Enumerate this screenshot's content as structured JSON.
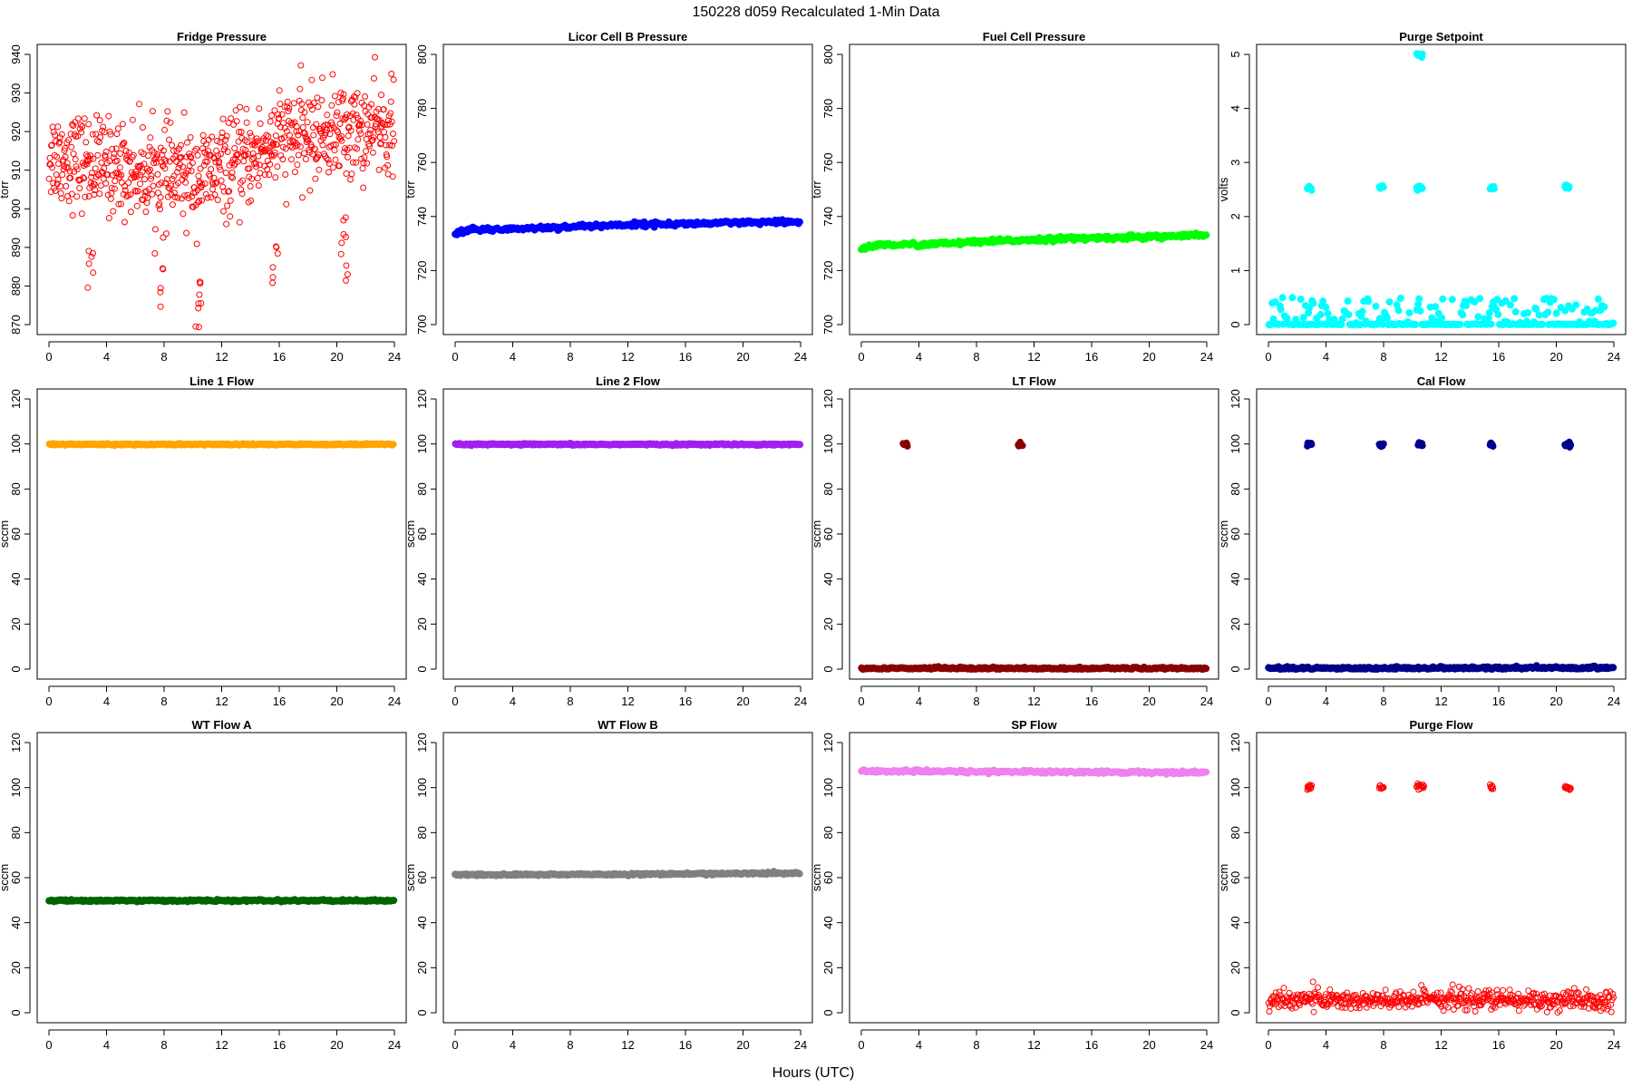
{
  "figure": {
    "title": "150228    d059    Recalculated 1-Min Data",
    "xlabel": "Hours (UTC)"
  },
  "chart_data": [
    {
      "type": "scatter",
      "title": "Fridge Pressure",
      "ylabel": "torr",
      "color": "#ff0000",
      "marker": "open-circle",
      "xlim": [
        0,
        24
      ],
      "ylim": [
        870,
        940
      ],
      "xticks": [
        0,
        4,
        8,
        12,
        16,
        20,
        24
      ],
      "yticks": [
        870,
        880,
        890,
        900,
        910,
        920,
        930,
        940
      ],
      "series": [
        {
          "name": "",
          "baseline": [
            [
              0,
              914
            ],
            [
              4,
              911
            ],
            [
              8,
              909
            ],
            [
              10,
              908
            ],
            [
              12,
              910
            ],
            [
              14,
              913
            ],
            [
              16,
              918
            ],
            [
              18,
              919
            ],
            [
              20,
              920
            ],
            [
              22,
              920
            ],
            [
              24,
              921
            ]
          ],
          "scatter": 6,
          "dips": [
            [
              2.8,
              884
            ],
            [
              3.0,
              888
            ],
            [
              7.7,
              876
            ],
            [
              7.9,
              887
            ],
            [
              10.3,
              871
            ],
            [
              10.5,
              875
            ],
            [
              10.6,
              880
            ],
            [
              15.6,
              881
            ],
            [
              15.8,
              889
            ],
            [
              20.4,
              891
            ],
            [
              20.7,
              883
            ],
            [
              20.5,
              895
            ]
          ]
        }
      ]
    },
    {
      "type": "scatter",
      "title": "Licor Cell B Pressure",
      "ylabel": "torr",
      "color": "#0000ff",
      "marker": "filled-dense",
      "xlim": [
        0,
        24
      ],
      "ylim": [
        700,
        800
      ],
      "xticks": [
        0,
        4,
        8,
        12,
        16,
        20,
        24
      ],
      "yticks": [
        700,
        720,
        740,
        760,
        780,
        800
      ],
      "series": [
        {
          "name": "",
          "baseline": [
            [
              0,
              734
            ],
            [
              1,
              735
            ],
            [
              6,
              735.8
            ],
            [
              12,
              737
            ],
            [
              16,
              737.3
            ],
            [
              24,
              738
            ]
          ],
          "scatter": 0.4
        }
      ]
    },
    {
      "type": "scatter",
      "title": "Fuel Cell Pressure",
      "ylabel": "torr",
      "color": "#00ff00",
      "marker": "filled-dense",
      "xlim": [
        0,
        24
      ],
      "ylim": [
        700,
        800
      ],
      "xticks": [
        0,
        4,
        8,
        12,
        16,
        20,
        24
      ],
      "yticks": [
        700,
        720,
        740,
        760,
        780,
        800
      ],
      "series": [
        {
          "name": "",
          "baseline": [
            [
              0,
              728
            ],
            [
              1,
              729.5
            ],
            [
              4,
              729.6
            ],
            [
              8,
              730.5
            ],
            [
              12,
              731.5
            ],
            [
              16,
              732
            ],
            [
              20,
              732.5
            ],
            [
              24,
              733
            ]
          ],
          "scatter": 0.4
        }
      ]
    },
    {
      "type": "scatter",
      "title": "Purge Setpoint",
      "ylabel": "volts",
      "color": "#00ffff",
      "marker": "filled-dense",
      "xlim": [
        0,
        24
      ],
      "ylim": [
        0,
        5
      ],
      "xticks": [
        0,
        4,
        8,
        12,
        16,
        20,
        24
      ],
      "yticks": [
        0,
        1,
        2,
        3,
        4,
        5
      ],
      "series": [
        {
          "name": "",
          "baseline": [
            [
              0,
              0
            ],
            [
              24,
              0
            ]
          ],
          "scatter": 0.005,
          "segments": [
            [
              2.7,
              3.0,
              2.52
            ],
            [
              7.7,
              8.0,
              2.55
            ],
            [
              10.3,
              10.7,
              2.53
            ],
            [
              15.4,
              15.7,
              2.52
            ],
            [
              20.6,
              20.9,
              2.55
            ],
            [
              10.3,
              10.7,
              5.0
            ]
          ]
        }
      ]
    },
    {
      "type": "scatter",
      "title": "Line 1 Flow",
      "ylabel": "sccm",
      "color": "#ffa500",
      "marker": "filled-dense",
      "xlim": [
        0,
        24
      ],
      "ylim": [
        0,
        120
      ],
      "xticks": [
        0,
        4,
        8,
        12,
        16,
        20,
        24
      ],
      "yticks": [
        0,
        20,
        40,
        60,
        80,
        100,
        120
      ],
      "series": [
        {
          "name": "",
          "baseline": [
            [
              0,
              99.8
            ],
            [
              24,
              99.8
            ]
          ],
          "scatter": 0.15
        }
      ]
    },
    {
      "type": "scatter",
      "title": "Line 2 Flow",
      "ylabel": "sccm",
      "color": "#a020f0",
      "marker": "filled-dense",
      "xlim": [
        0,
        24
      ],
      "ylim": [
        0,
        120
      ],
      "xticks": [
        0,
        4,
        8,
        12,
        16,
        20,
        24
      ],
      "yticks": [
        0,
        20,
        40,
        60,
        80,
        100,
        120
      ],
      "series": [
        {
          "name": "",
          "baseline": [
            [
              0,
              99.8
            ],
            [
              24,
              99.8
            ]
          ],
          "scatter": 0.15
        }
      ]
    },
    {
      "type": "scatter",
      "title": "LT Flow",
      "ylabel": "sccm",
      "color": "#8b0000",
      "marker": "filled-dense",
      "xlim": [
        0,
        24
      ],
      "ylim": [
        0,
        120
      ],
      "xticks": [
        0,
        4,
        8,
        12,
        16,
        20,
        24
      ],
      "yticks": [
        0,
        20,
        40,
        60,
        80,
        100,
        120
      ],
      "series": [
        {
          "name": "",
          "baseline": [
            [
              0,
              0.3
            ],
            [
              24,
              0.3
            ]
          ],
          "scatter": 0.3,
          "segments": [
            [
              2.9,
              3.2,
              99.8
            ],
            [
              10.9,
              11.2,
              99.8
            ]
          ]
        }
      ]
    },
    {
      "type": "scatter",
      "title": "Cal Flow",
      "ylabel": "sccm",
      "color": "#00008b",
      "marker": "filled-dense",
      "xlim": [
        0,
        24
      ],
      "ylim": [
        0,
        120
      ],
      "xticks": [
        0,
        4,
        8,
        12,
        16,
        20,
        24
      ],
      "yticks": [
        0,
        20,
        40,
        60,
        80,
        100,
        120
      ],
      "series": [
        {
          "name": "",
          "baseline": [
            [
              0,
              0.3
            ],
            [
              24,
              0.5
            ]
          ],
          "scatter": 0.3,
          "segments": [
            [
              2.7,
              3.0,
              99.8
            ],
            [
              7.7,
              8.0,
              99.8
            ],
            [
              10.4,
              10.7,
              99.8
            ],
            [
              15.4,
              15.6,
              99.8
            ],
            [
              20.6,
              21.0,
              99.8
            ]
          ]
        }
      ]
    },
    {
      "type": "scatter",
      "title": "WT Flow A",
      "ylabel": "sccm",
      "color": "#006400",
      "marker": "filled-dense",
      "xlim": [
        0,
        24
      ],
      "ylim": [
        0,
        120
      ],
      "xticks": [
        0,
        4,
        8,
        12,
        16,
        20,
        24
      ],
      "yticks": [
        0,
        20,
        40,
        60,
        80,
        100,
        120
      ],
      "series": [
        {
          "name": "",
          "baseline": [
            [
              0,
              49.8
            ],
            [
              24,
              49.8
            ]
          ],
          "scatter": 0.2
        }
      ]
    },
    {
      "type": "scatter",
      "title": "WT Flow B",
      "ylabel": "sccm",
      "color": "#808080",
      "marker": "filled-dense",
      "xlim": [
        0,
        24
      ],
      "ylim": [
        0,
        120
      ],
      "xticks": [
        0,
        4,
        8,
        12,
        16,
        20,
        24
      ],
      "yticks": [
        0,
        20,
        40,
        60,
        80,
        100,
        120
      ],
      "series": [
        {
          "name": "",
          "baseline": [
            [
              0,
              61.2
            ],
            [
              12,
              61.5
            ],
            [
              24,
              62.0
            ]
          ],
          "scatter": 0.2
        }
      ]
    },
    {
      "type": "scatter",
      "title": "SP Flow",
      "ylabel": "sccm",
      "color": "#ee82ee",
      "marker": "filled-dense",
      "xlim": [
        0,
        24
      ],
      "ylim": [
        0,
        120
      ],
      "xticks": [
        0,
        4,
        8,
        12,
        16,
        20,
        24
      ],
      "yticks": [
        0,
        20,
        40,
        60,
        80,
        100,
        120
      ],
      "series": [
        {
          "name": "",
          "baseline": [
            [
              0,
              107.3
            ],
            [
              12,
              107.0
            ],
            [
              24,
              106.7
            ]
          ],
          "scatter": 0.3
        }
      ]
    },
    {
      "type": "scatter",
      "title": "Purge Flow",
      "ylabel": "sccm",
      "color": "#ff0000",
      "marker": "open-circle",
      "xlim": [
        0,
        24
      ],
      "ylim": [
        0,
        120
      ],
      "xticks": [
        0,
        4,
        8,
        12,
        16,
        20,
        24
      ],
      "yticks": [
        0,
        20,
        40,
        60,
        80,
        100,
        120
      ],
      "series": [
        {
          "name": "",
          "baseline": [
            [
              0,
              5
            ],
            [
              3,
              6.5
            ],
            [
              5,
              5.5
            ],
            [
              10,
              5
            ],
            [
              11,
              8
            ],
            [
              12,
              6
            ],
            [
              24,
              5
            ]
          ],
          "scatter": 2.2,
          "segments": [
            [
              2.7,
              3.0,
              100
            ],
            [
              7.7,
              8.0,
              100
            ],
            [
              10.3,
              10.8,
              100.5
            ],
            [
              15.4,
              15.6,
              100
            ],
            [
              20.6,
              21.0,
              100
            ]
          ]
        }
      ]
    }
  ]
}
